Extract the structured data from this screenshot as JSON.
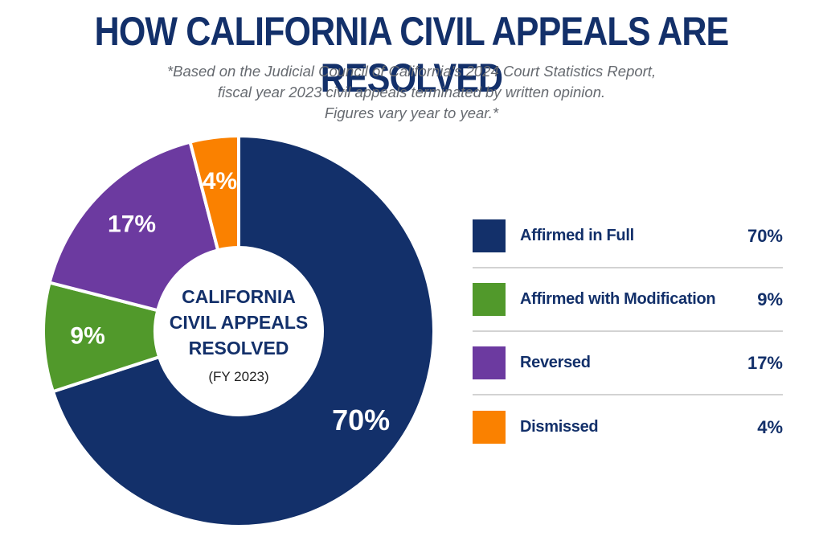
{
  "header": {
    "title": "HOW CALIFORNIA CIVIL APPEALS ARE RESOLVED",
    "subtitle_lines": [
      "*Based on the Judicial Council of California's 2024 Court Statistics Report,",
      "fiscal year 2023 civil appeals terminated by written opinion.",
      "Figures vary year to year.*"
    ]
  },
  "chart_data": {
    "type": "pie",
    "subtype": "donut",
    "title": "HOW CALIFORNIA CIVIL APPEALS ARE RESOLVED",
    "center_label_lines": [
      "CALIFORNIA",
      "CIVIL APPEALS",
      "RESOLVED"
    ],
    "center_sublabel": "(FY 2023)",
    "legend_position": "right",
    "start": "top, clockwise",
    "slices": [
      {
        "label": "Affirmed in Full",
        "value": 70,
        "display": "70%",
        "color": "#13306a"
      },
      {
        "label": "Affirmed with Modification",
        "value": 9,
        "display": "9%",
        "color": "#51992b"
      },
      {
        "label": "Reversed",
        "value": 17,
        "display": "17%",
        "color": "#6c3aa0"
      },
      {
        "label": "Dismissed",
        "value": 4,
        "display": "4%",
        "color": "#fa8100"
      }
    ]
  }
}
